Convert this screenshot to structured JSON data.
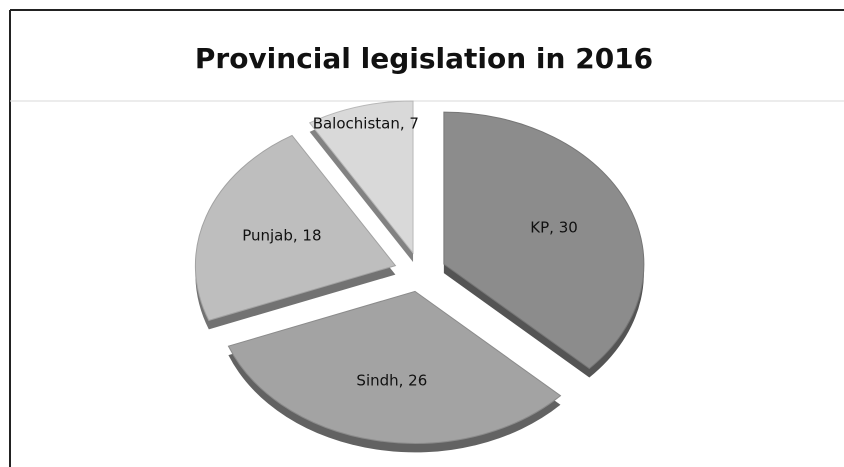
{
  "chart_data": {
    "type": "pie",
    "title": "Provincial legislation in 2016",
    "values": [
      30,
      26,
      18,
      7
    ],
    "value_labels": [
      "KP, 30",
      "Sindh, 26",
      "Punjab, 18",
      "Balochistan, 7"
    ],
    "colors": [
      "#8c8c8c",
      "#a3a3a3",
      "#bebebe",
      "#d9d9d9"
    ]
  }
}
